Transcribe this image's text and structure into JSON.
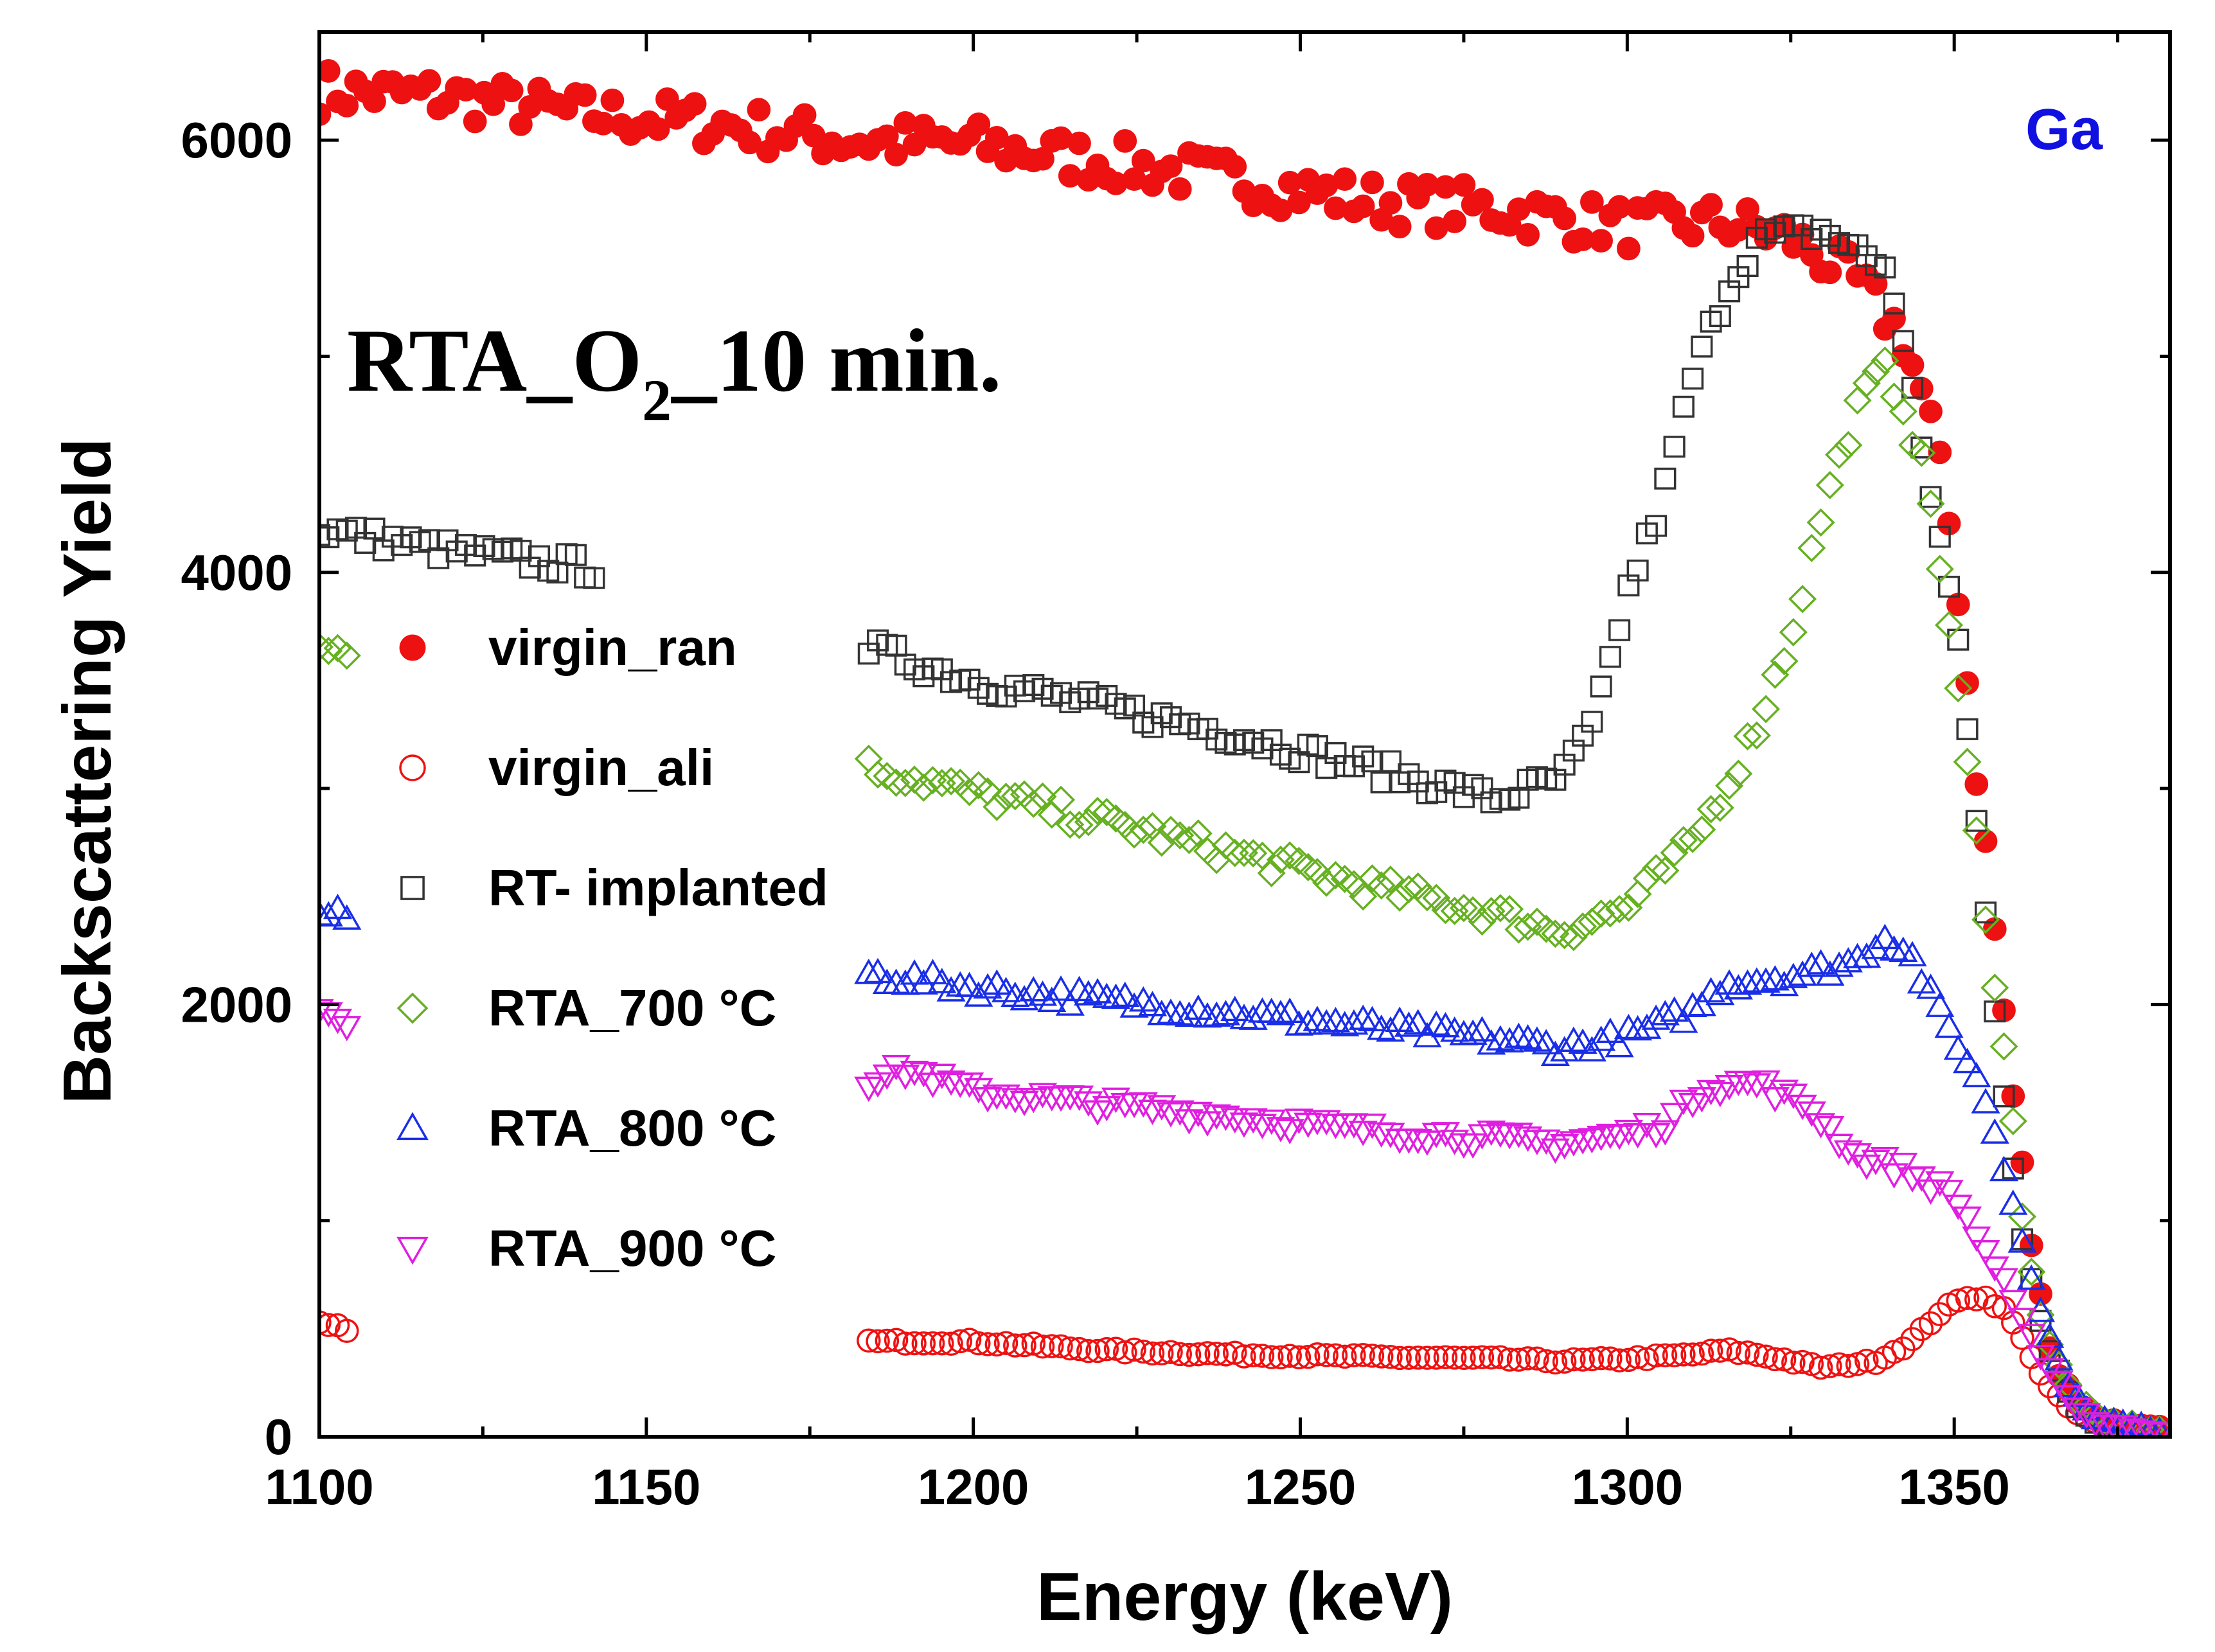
{
  "chart_data": {
    "type": "scatter",
    "title": "RTA_O",
    "title_subscript": "2",
    "title_suffix": "_10 min.",
    "corner_label": "Ga",
    "corner_label_color": "#1010e0",
    "xlabel": "Energy (keV)",
    "ylabel": "Backscattering Yield",
    "xlim": [
      1100,
      1383
    ],
    "ylim": [
      0,
      6500
    ],
    "xticks": [
      1100,
      1150,
      1200,
      1250,
      1300,
      1350
    ],
    "yticks": [
      0,
      2000,
      4000,
      6000
    ],
    "legend_position": "left-center",
    "series": [
      {
        "name": "virgin_ran",
        "marker": "circle-filled",
        "color": "#ee1111",
        "anchors": [
          [
            1100,
            6230
          ],
          [
            1120,
            6200
          ],
          [
            1140,
            6120
          ],
          [
            1160,
            6080
          ],
          [
            1180,
            6000
          ],
          [
            1200,
            5980
          ],
          [
            1220,
            5900
          ],
          [
            1240,
            5820
          ],
          [
            1260,
            5720
          ],
          [
            1280,
            5680
          ],
          [
            1300,
            5600
          ],
          [
            1315,
            5620
          ],
          [
            1325,
            5550
          ],
          [
            1335,
            5350
          ],
          [
            1342,
            5100
          ],
          [
            1346,
            4750
          ],
          [
            1350,
            4100
          ],
          [
            1353,
            3200
          ],
          [
            1356,
            2400
          ],
          [
            1360,
            1300
          ],
          [
            1363,
            650
          ],
          [
            1366,
            300
          ],
          [
            1370,
            120
          ],
          [
            1376,
            50
          ],
          [
            1383,
            20
          ]
        ],
        "noise": 110
      },
      {
        "name": "virgin_ali",
        "marker": "circle-open",
        "color": "#ee1111",
        "anchors": [
          [
            1100,
            520
          ],
          [
            1104,
            500
          ],
          [
            1184,
            440
          ],
          [
            1200,
            440
          ],
          [
            1220,
            400
          ],
          [
            1240,
            380
          ],
          [
            1260,
            370
          ],
          [
            1280,
            360
          ],
          [
            1290,
            350
          ],
          [
            1300,
            360
          ],
          [
            1310,
            380
          ],
          [
            1315,
            400
          ],
          [
            1320,
            380
          ],
          [
            1330,
            320
          ],
          [
            1338,
            350
          ],
          [
            1343,
            430
          ],
          [
            1348,
            580
          ],
          [
            1352,
            650
          ],
          [
            1355,
            640
          ],
          [
            1358,
            580
          ],
          [
            1361,
            420
          ],
          [
            1364,
            250
          ],
          [
            1368,
            120
          ],
          [
            1372,
            60
          ],
          [
            1383,
            20
          ]
        ],
        "noise": 20,
        "gaps": [
          [
            1104.5,
            1183.5
          ]
        ]
      },
      {
        "name": "RT- implanted",
        "marker": "square-open",
        "color": "#333333",
        "anchors": [
          [
            1100,
            4200
          ],
          [
            1120,
            4100
          ],
          [
            1142,
            4020
          ],
          [
            1184,
            3650
          ],
          [
            1200,
            3500
          ],
          [
            1220,
            3380
          ],
          [
            1240,
            3250
          ],
          [
            1260,
            3100
          ],
          [
            1280,
            2950
          ],
          [
            1290,
            3050
          ],
          [
            1295,
            3300
          ],
          [
            1300,
            3900
          ],
          [
            1305,
            4300
          ],
          [
            1310,
            4900
          ],
          [
            1315,
            5300
          ],
          [
            1320,
            5550
          ],
          [
            1330,
            5580
          ],
          [
            1340,
            5400
          ],
          [
            1345,
            4600
          ],
          [
            1350,
            3800
          ],
          [
            1353,
            3000
          ],
          [
            1357,
            1700
          ],
          [
            1360,
            1000
          ],
          [
            1364,
            450
          ],
          [
            1368,
            150
          ],
          [
            1372,
            60
          ],
          [
            1383,
            20
          ]
        ],
        "noise": 55,
        "gaps": [
          [
            1142.5,
            1183.5
          ]
        ]
      },
      {
        "name": "RTA_700 °C",
        "marker": "diamond-open",
        "color": "#66b022",
        "anchors": [
          [
            1100,
            3640
          ],
          [
            1104,
            3660
          ],
          [
            1184,
            3100
          ],
          [
            1200,
            2980
          ],
          [
            1220,
            2850
          ],
          [
            1240,
            2700
          ],
          [
            1260,
            2550
          ],
          [
            1280,
            2420
          ],
          [
            1290,
            2340
          ],
          [
            1300,
            2450
          ],
          [
            1310,
            2750
          ],
          [
            1315,
            3000
          ],
          [
            1320,
            3300
          ],
          [
            1325,
            3700
          ],
          [
            1330,
            4300
          ],
          [
            1335,
            4750
          ],
          [
            1339,
            4950
          ],
          [
            1342,
            4800
          ],
          [
            1346,
            4400
          ],
          [
            1349,
            3800
          ],
          [
            1352,
            3100
          ],
          [
            1355,
            2400
          ],
          [
            1358,
            1700
          ],
          [
            1361,
            900
          ],
          [
            1364,
            450
          ],
          [
            1368,
            200
          ],
          [
            1372,
            80
          ],
          [
            1383,
            20
          ]
        ],
        "noise": 55,
        "gaps": [
          [
            1104.5,
            1183.5
          ]
        ]
      },
      {
        "name": "RTA_800 °C",
        "marker": "triangle-up-open",
        "color": "#1a2ee8",
        "anchors": [
          [
            1100,
            2420
          ],
          [
            1104,
            2400
          ],
          [
            1184,
            2140
          ],
          [
            1200,
            2080
          ],
          [
            1220,
            2020
          ],
          [
            1240,
            1960
          ],
          [
            1260,
            1900
          ],
          [
            1280,
            1840
          ],
          [
            1290,
            1800
          ],
          [
            1300,
            1850
          ],
          [
            1310,
            1970
          ],
          [
            1315,
            2100
          ],
          [
            1325,
            2130
          ],
          [
            1335,
            2200
          ],
          [
            1339,
            2320
          ],
          [
            1343,
            2250
          ],
          [
            1347,
            2000
          ],
          [
            1351,
            1800
          ],
          [
            1355,
            1550
          ],
          [
            1358,
            1200
          ],
          [
            1361,
            850
          ],
          [
            1364,
            500
          ],
          [
            1368,
            200
          ],
          [
            1372,
            80
          ],
          [
            1383,
            20
          ]
        ],
        "noise": 40,
        "gaps": [
          [
            1104.5,
            1183.5
          ]
        ]
      },
      {
        "name": "RTA_900 °C",
        "marker": "triangle-down-open",
        "color": "#e01ee0",
        "anchors": [
          [
            1100,
            2000
          ],
          [
            1104,
            1920
          ],
          [
            1184,
            1650
          ],
          [
            1190,
            1700
          ],
          [
            1200,
            1600
          ],
          [
            1220,
            1540
          ],
          [
            1240,
            1480
          ],
          [
            1260,
            1420
          ],
          [
            1280,
            1380
          ],
          [
            1290,
            1360
          ],
          [
            1300,
            1400
          ],
          [
            1306,
            1450
          ],
          [
            1312,
            1620
          ],
          [
            1320,
            1640
          ],
          [
            1328,
            1520
          ],
          [
            1335,
            1300
          ],
          [
            1342,
            1240
          ],
          [
            1350,
            1120
          ],
          [
            1354,
            900
          ],
          [
            1357,
            750
          ],
          [
            1360,
            550
          ],
          [
            1364,
            350
          ],
          [
            1368,
            160
          ],
          [
            1372,
            60
          ],
          [
            1383,
            15
          ]
        ],
        "noise": 35,
        "gaps": [
          [
            1104.5,
            1183.5
          ]
        ]
      }
    ]
  }
}
